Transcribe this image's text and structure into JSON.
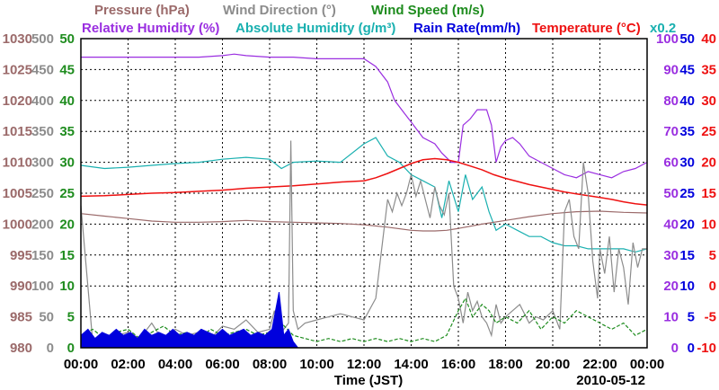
{
  "chart_data": {
    "type": "line",
    "title_rows": [
      [
        {
          "text": "Pressure (hPa)",
          "color": "#9b6a6a"
        },
        {
          "text": "Wind Direction (°)",
          "color": "#8c8c8c"
        },
        {
          "text": "Wind Speed (m/s)",
          "color": "#1e8c1e"
        }
      ],
      [
        {
          "text": "Relative Humidity (%)",
          "color": "#9a2ee0"
        },
        {
          "text": "Absolute Humidity (g/m³)",
          "color": "#1ab0b0"
        },
        {
          "text": "Rain Rate(mm/h)",
          "color": "#0000dd"
        },
        {
          "text": "Temperature (°C)",
          "color": "#ee1111"
        }
      ]
    ],
    "scale_note": {
      "text": "x0.2",
      "color": "#1ab0b0"
    },
    "xlabel": "Time (JST)",
    "date_label": "2010-05-12",
    "x_ticks": [
      "00:00",
      "02:00",
      "04:00",
      "06:00",
      "08:00",
      "10:00",
      "12:00",
      "14:00",
      "16:00",
      "18:00",
      "20:00",
      "22:00",
      "00:00"
    ],
    "x_range_hours": [
      0,
      24
    ],
    "axes": {
      "pressure": {
        "color": "#9b6a6a",
        "ticks": [
          "1030",
          "1025",
          "1020",
          "1015",
          "1010",
          "1005",
          "1000",
          "995",
          "990",
          "985",
          "980"
        ],
        "range": [
          980,
          1030
        ]
      },
      "wind_direction": {
        "color": "#8c8c8c",
        "ticks": [
          "500",
          "450",
          "400",
          "350",
          "300",
          "250",
          "200",
          "150",
          "100",
          "50",
          "0"
        ],
        "range": [
          0,
          500
        ]
      },
      "wind_speed": {
        "color": "#1e8c1e",
        "ticks": [
          "50",
          "45",
          "40",
          "35",
          "30",
          "25",
          "20",
          "15",
          "10",
          "5",
          "0"
        ],
        "range": [
          0,
          50
        ]
      },
      "relative_humidity": {
        "color": "#9a2ee0",
        "ticks": [
          "100",
          "90",
          "80",
          "70",
          "60",
          "50",
          "40",
          "30",
          "20",
          "10",
          "0"
        ],
        "range": [
          0,
          100
        ]
      },
      "rain_rate": {
        "color": "#0000dd",
        "ticks": [
          "50",
          "45",
          "40",
          "35",
          "30",
          "25",
          "20",
          "15",
          "10",
          "5",
          "0"
        ],
        "range": [
          0,
          50
        ]
      },
      "temperature": {
        "color": "#ee1111",
        "ticks": [
          "40",
          "35",
          "30",
          "25",
          "20",
          "15",
          "10",
          "5",
          "0",
          "-5",
          "-10"
        ],
        "range": [
          -10,
          40
        ]
      }
    },
    "series": [
      {
        "name": "Relative Humidity",
        "axis": "relative_humidity",
        "color": "#9a2ee0",
        "x": [
          0,
          2,
          4,
          5,
          6,
          6.5,
          7,
          8,
          9,
          10,
          11,
          12,
          12.5,
          13,
          13.3,
          13.7,
          14,
          14.5,
          15,
          15.3,
          15.7,
          16,
          16.2,
          16.5,
          16.8,
          17.2,
          17.4,
          17.6,
          17.8,
          18,
          18.3,
          18.6,
          19,
          19.5,
          20,
          20.5,
          21,
          21.5,
          22,
          22.5,
          23,
          23.5,
          24
        ],
        "y": [
          94,
          94,
          94,
          94,
          94.5,
          95,
          94.5,
          94,
          94,
          93.5,
          93.5,
          93.5,
          91,
          86,
          80,
          76,
          73,
          68,
          66,
          63,
          60,
          60,
          72,
          74,
          77,
          77,
          72,
          60,
          65,
          67,
          68,
          66,
          62,
          60,
          58,
          56,
          55,
          57,
          56,
          55,
          57,
          58,
          60
        ]
      },
      {
        "name": "Absolute Humidity",
        "axis": "rain_rate",
        "color": "#1ab0b0",
        "x": [
          0,
          1,
          2,
          3,
          4,
          5,
          6,
          7,
          8,
          8.5,
          9,
          10,
          11,
          12,
          12.5,
          13,
          13.5,
          14,
          14.5,
          15,
          15.3,
          15.6,
          16,
          16.3,
          16.6,
          17,
          17.3,
          17.6,
          18,
          18.5,
          19,
          19.5,
          20,
          20.5,
          21,
          21.5,
          22,
          22.5,
          23,
          23.5,
          24
        ],
        "y": [
          29.5,
          29,
          29.2,
          29.5,
          29.8,
          30,
          30.5,
          30.8,
          30.5,
          29,
          30,
          30.2,
          30,
          33,
          34,
          31,
          30,
          28,
          27,
          26,
          21,
          27,
          22,
          28,
          24,
          26,
          22,
          19,
          20,
          19,
          18,
          18,
          17,
          16.5,
          16.5,
          16,
          16,
          16,
          16,
          15.5,
          16
        ]
      },
      {
        "name": "Temperature",
        "axis": "temperature",
        "color": "#ee1111",
        "x": [
          0,
          1,
          2,
          3,
          4,
          5,
          6,
          7,
          8,
          9,
          10,
          11,
          12,
          12.5,
          13,
          13.5,
          14,
          14.5,
          15,
          15.5,
          16,
          16.5,
          17,
          17.5,
          18,
          18.5,
          19,
          19.5,
          20,
          20.5,
          21,
          21.5,
          22,
          22.5,
          23,
          23.5,
          24
        ],
        "y": [
          14.5,
          14.6,
          14.8,
          15,
          15.1,
          15.3,
          15.5,
          15.8,
          16,
          16.2,
          16.5,
          16.8,
          17,
          17.5,
          18.2,
          19,
          19.8,
          20.4,
          20.6,
          20.4,
          20,
          19.4,
          18.8,
          18,
          17.4,
          16.9,
          16.4,
          16,
          15.6,
          15.2,
          14.9,
          14.6,
          14.3,
          14,
          13.6,
          13.3,
          13.1
        ]
      },
      {
        "name": "Pressure",
        "axis": "pressure",
        "color": "#9b6a6a",
        "x": [
          0,
          1,
          2,
          3,
          4,
          5,
          6,
          7,
          8,
          9,
          10,
          11,
          12,
          13,
          14,
          14.5,
          15,
          15.5,
          16,
          17,
          18,
          19,
          20,
          21,
          22,
          23,
          24
        ],
        "y": [
          1001.7,
          1001.3,
          1000.9,
          1000.5,
          1000.3,
          1000.3,
          1000.4,
          1000.6,
          1000.4,
          1000.3,
          1000.2,
          1000.1,
          999.9,
          999.5,
          999,
          998.9,
          998.9,
          999,
          999.3,
          1000,
          1000.6,
          1001.2,
          1001.7,
          1002,
          1002.1,
          1001.9,
          1001.8
        ]
      },
      {
        "name": "Wind Direction",
        "axis": "wind_direction",
        "color": "#8c8c8c",
        "x": [
          0,
          0.5,
          1,
          1.5,
          2,
          2.5,
          3,
          3.5,
          4,
          4.5,
          5,
          5.5,
          6,
          6.5,
          7,
          7.5,
          8,
          8.2,
          8.4,
          8.6,
          8.8,
          8.9,
          9,
          9.2,
          9.5,
          10,
          10.5,
          11,
          11.5,
          12,
          12.5,
          13,
          13.2,
          13.4,
          13.6,
          13.8,
          14,
          14.2,
          14.4,
          14.6,
          14.8,
          15,
          15.2,
          15.4,
          15.6,
          15.8,
          16,
          16.2,
          16.4,
          16.6,
          16.8,
          17,
          17.2,
          17.4,
          17.6,
          17.8,
          18,
          18.3,
          18.6,
          19,
          19.3,
          19.6,
          20,
          20.3,
          20.5,
          20.7,
          20.9,
          21.1,
          21.3,
          21.5,
          21.7,
          21.9,
          22,
          22.2,
          22.4,
          22.6,
          22.8,
          23,
          23.2,
          23.4,
          23.6,
          23.8,
          24
        ],
        "y": [
          230,
          10,
          15,
          20,
          25,
          15,
          40,
          10,
          30,
          20,
          25,
          15,
          35,
          30,
          45,
          25,
          30,
          60,
          20,
          30,
          40,
          335,
          60,
          30,
          40,
          45,
          50,
          55,
          50,
          45,
          80,
          240,
          220,
          250,
          230,
          250,
          280,
          245,
          270,
          240,
          210,
          260,
          230,
          215,
          250,
          100,
          80,
          40,
          90,
          60,
          75,
          50,
          40,
          20,
          70,
          40,
          50,
          60,
          70,
          40,
          50,
          45,
          60,
          30,
          220,
          240,
          180,
          160,
          300,
          250,
          140,
          80,
          160,
          120,
          180,
          90,
          160,
          130,
          70,
          170,
          130,
          160,
          160
        ]
      },
      {
        "name": "Wind Speed",
        "axis": "wind_speed",
        "color": "#1e8c1e",
        "x": [
          0,
          0.5,
          1,
          1.5,
          2,
          2.5,
          3,
          3.5,
          4,
          4.5,
          5,
          5.5,
          6,
          6.5,
          7,
          7.5,
          8,
          8.5,
          9,
          9.5,
          10,
          10.5,
          11,
          11.5,
          12,
          12.5,
          13,
          13.5,
          14,
          14.5,
          15,
          15.5,
          16,
          16.3,
          16.6,
          17,
          17.3,
          17.6,
          18,
          18.5,
          19,
          19.5,
          20,
          20.5,
          21,
          21.5,
          22,
          22.5,
          23,
          23.5,
          24
        ],
        "y": [
          2,
          3,
          1.5,
          2.5,
          3,
          1.5,
          2.5,
          3.5,
          2,
          2.5,
          1.5,
          3,
          2,
          2.5,
          3,
          2,
          2.5,
          4,
          2,
          1.5,
          1,
          1.5,
          1,
          1.5,
          1,
          1.5,
          1,
          1.5,
          1,
          1.5,
          1,
          2,
          6,
          8,
          5,
          7,
          6,
          4,
          5,
          4,
          6,
          3,
          5,
          4,
          6,
          5,
          4,
          3,
          4,
          2,
          3
        ]
      },
      {
        "name": "Rain Rate",
        "axis": "rain_rate",
        "color": "#0000dd",
        "x": [
          0,
          0.3,
          0.6,
          0.9,
          1.2,
          1.5,
          1.8,
          2.1,
          2.4,
          2.7,
          3,
          3.3,
          3.6,
          3.9,
          4.2,
          4.5,
          4.8,
          5.1,
          5.4,
          5.7,
          6,
          6.3,
          6.6,
          6.9,
          7.2,
          7.5,
          7.8,
          8.1,
          8.4,
          8.6,
          8.8,
          9,
          9.2
        ],
        "y": [
          2,
          3,
          1.5,
          2.5,
          2,
          3,
          2,
          2.5,
          1.5,
          3,
          2,
          2.5,
          2,
          3,
          2,
          2.5,
          2,
          3,
          2.5,
          2,
          3,
          2,
          2.5,
          3,
          2,
          2.5,
          2,
          3,
          9,
          2,
          3,
          1,
          0
        ]
      }
    ]
  }
}
